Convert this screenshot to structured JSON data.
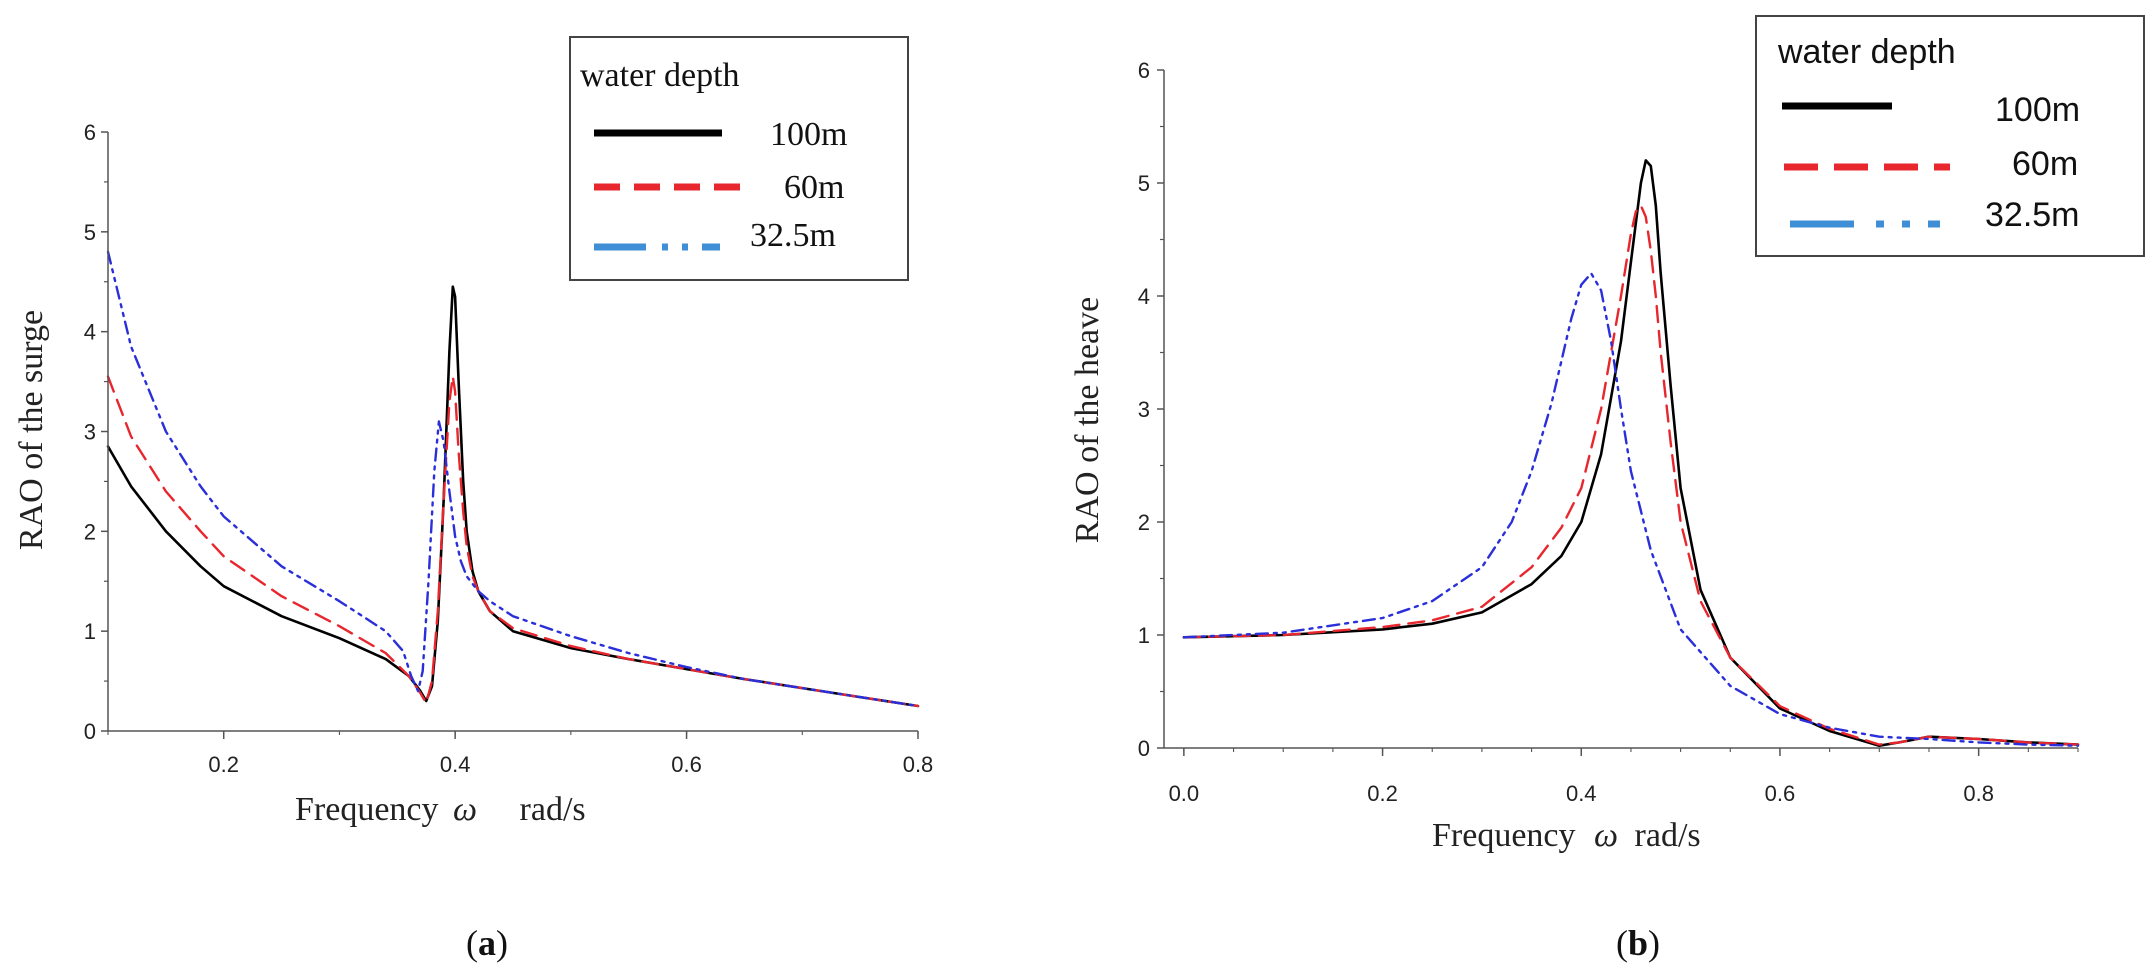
{
  "chart_data": [
    {
      "id": "a",
      "type": "line",
      "caption_letter": "a",
      "xlabel": "Frequency",
      "xlabel_symbol": "ω",
      "xlabel_unit": "rad/s",
      "ylabel": "RAO of the surge",
      "xlim": [
        0.1,
        0.8
      ],
      "ylim": [
        0,
        6
      ],
      "xticks": [
        0.2,
        0.4,
        0.6,
        0.8
      ],
      "xtick_labels": [
        "0.2",
        "0.4",
        "0.6",
        "0.8"
      ],
      "yticks": [
        0,
        1,
        2,
        3,
        4,
        5,
        6
      ],
      "ytick_labels": [
        "0",
        "1",
        "2",
        "3",
        "4",
        "5",
        "6"
      ],
      "legend": {
        "title": "water depth",
        "position": "top-right",
        "entries": [
          "100m",
          "60m",
          "32.5m"
        ]
      },
      "series": [
        {
          "name": "100m",
          "color": "#000000",
          "dash": "solid",
          "x": [
            0.1,
            0.12,
            0.15,
            0.18,
            0.2,
            0.25,
            0.3,
            0.34,
            0.36,
            0.37,
            0.375,
            0.38,
            0.385,
            0.39,
            0.395,
            0.398,
            0.4,
            0.403,
            0.407,
            0.41,
            0.415,
            0.42,
            0.43,
            0.45,
            0.5,
            0.55,
            0.6,
            0.65,
            0.7,
            0.75,
            0.8
          ],
          "y": [
            2.85,
            2.45,
            2.0,
            1.65,
            1.45,
            1.15,
            0.93,
            0.72,
            0.55,
            0.4,
            0.3,
            0.45,
            1.1,
            2.3,
            3.8,
            4.45,
            4.35,
            3.5,
            2.5,
            2.0,
            1.6,
            1.4,
            1.2,
            1.0,
            0.83,
            0.72,
            0.62,
            0.52,
            0.43,
            0.34,
            0.25
          ]
        },
        {
          "name": "60m",
          "color": "#e8262e",
          "dash": "dashed",
          "x": [
            0.1,
            0.12,
            0.15,
            0.18,
            0.2,
            0.25,
            0.3,
            0.34,
            0.36,
            0.37,
            0.375,
            0.38,
            0.385,
            0.39,
            0.395,
            0.398,
            0.4,
            0.403,
            0.407,
            0.41,
            0.415,
            0.42,
            0.43,
            0.45,
            0.5,
            0.55,
            0.6,
            0.65,
            0.7,
            0.75,
            0.8
          ],
          "y": [
            3.55,
            2.95,
            2.4,
            2.0,
            1.75,
            1.35,
            1.05,
            0.78,
            0.55,
            0.38,
            0.28,
            0.5,
            1.2,
            2.3,
            3.3,
            3.55,
            3.4,
            2.8,
            2.2,
            1.85,
            1.55,
            1.4,
            1.2,
            1.03,
            0.85,
            0.72,
            0.62,
            0.52,
            0.43,
            0.34,
            0.25
          ]
        },
        {
          "name": "32.5m",
          "color": "#2b2fd9",
          "dash": "dashdotdot",
          "x": [
            0.1,
            0.12,
            0.15,
            0.18,
            0.2,
            0.25,
            0.3,
            0.34,
            0.355,
            0.362,
            0.368,
            0.372,
            0.377,
            0.382,
            0.386,
            0.39,
            0.395,
            0.4,
            0.405,
            0.41,
            0.42,
            0.43,
            0.45,
            0.5,
            0.55,
            0.6,
            0.65,
            0.7,
            0.75,
            0.8
          ],
          "y": [
            4.8,
            3.85,
            3.0,
            2.45,
            2.15,
            1.65,
            1.3,
            1.0,
            0.8,
            0.55,
            0.4,
            0.6,
            1.5,
            2.6,
            3.1,
            2.9,
            2.4,
            1.95,
            1.7,
            1.55,
            1.4,
            1.3,
            1.15,
            0.95,
            0.78,
            0.64,
            0.52,
            0.43,
            0.34,
            0.25
          ]
        }
      ]
    },
    {
      "id": "b",
      "type": "line",
      "caption_letter": "b",
      "xlabel": "Frequency",
      "xlabel_symbol": "ω",
      "xlabel_unit": "rad/s",
      "ylabel": "RAO of the heave",
      "xlim": [
        -0.02,
        0.9
      ],
      "ylim": [
        0,
        6
      ],
      "xticks": [
        0.0,
        0.2,
        0.4,
        0.6,
        0.8
      ],
      "xtick_labels": [
        "0.0",
        "0.2",
        "0.4",
        "0.6",
        "0.8"
      ],
      "yticks": [
        0,
        1,
        2,
        3,
        4,
        5,
        6
      ],
      "ytick_labels": [
        "0",
        "1",
        "2",
        "3",
        "4",
        "5",
        "6"
      ],
      "legend": {
        "title": "water depth",
        "position": "top-right",
        "entries": [
          "100m",
          "60m",
          "32.5m"
        ]
      },
      "series": [
        {
          "name": "100m",
          "color": "#000000",
          "dash": "solid",
          "x": [
            0.0,
            0.1,
            0.2,
            0.25,
            0.3,
            0.35,
            0.38,
            0.4,
            0.42,
            0.44,
            0.45,
            0.46,
            0.465,
            0.47,
            0.475,
            0.48,
            0.49,
            0.5,
            0.52,
            0.55,
            0.6,
            0.65,
            0.7,
            0.72,
            0.75,
            0.8,
            0.85,
            0.9
          ],
          "y": [
            0.98,
            1.0,
            1.05,
            1.1,
            1.2,
            1.45,
            1.7,
            2.0,
            2.6,
            3.6,
            4.3,
            5.0,
            5.2,
            5.15,
            4.8,
            4.2,
            3.2,
            2.3,
            1.4,
            0.8,
            0.35,
            0.15,
            0.02,
            0.05,
            0.1,
            0.08,
            0.05,
            0.03
          ]
        },
        {
          "name": "60m",
          "color": "#e8262e",
          "dash": "dashed",
          "x": [
            0.0,
            0.1,
            0.2,
            0.25,
            0.3,
            0.35,
            0.38,
            0.4,
            0.42,
            0.44,
            0.45,
            0.455,
            0.46,
            0.465,
            0.47,
            0.475,
            0.48,
            0.49,
            0.5,
            0.52,
            0.55,
            0.6,
            0.65,
            0.7,
            0.72,
            0.75,
            0.8,
            0.85,
            0.9
          ],
          "y": [
            0.98,
            1.0,
            1.07,
            1.13,
            1.25,
            1.6,
            1.95,
            2.3,
            3.0,
            4.0,
            4.55,
            4.75,
            4.8,
            4.7,
            4.4,
            4.0,
            3.5,
            2.7,
            2.0,
            1.3,
            0.8,
            0.37,
            0.17,
            0.03,
            0.05,
            0.1,
            0.08,
            0.05,
            0.03
          ]
        },
        {
          "name": "32.5m",
          "color": "#2b2fd9",
          "dash": "dashdotdot",
          "x": [
            0.0,
            0.1,
            0.2,
            0.25,
            0.3,
            0.33,
            0.35,
            0.37,
            0.39,
            0.4,
            0.41,
            0.42,
            0.43,
            0.44,
            0.45,
            0.47,
            0.5,
            0.55,
            0.6,
            0.65,
            0.7,
            0.75,
            0.8,
            0.85,
            0.9
          ],
          "y": [
            0.98,
            1.02,
            1.15,
            1.3,
            1.6,
            2.0,
            2.45,
            3.05,
            3.8,
            4.1,
            4.2,
            4.05,
            3.6,
            3.0,
            2.45,
            1.75,
            1.05,
            0.55,
            0.3,
            0.18,
            0.1,
            0.08,
            0.05,
            0.03,
            0.02
          ]
        }
      ]
    }
  ]
}
